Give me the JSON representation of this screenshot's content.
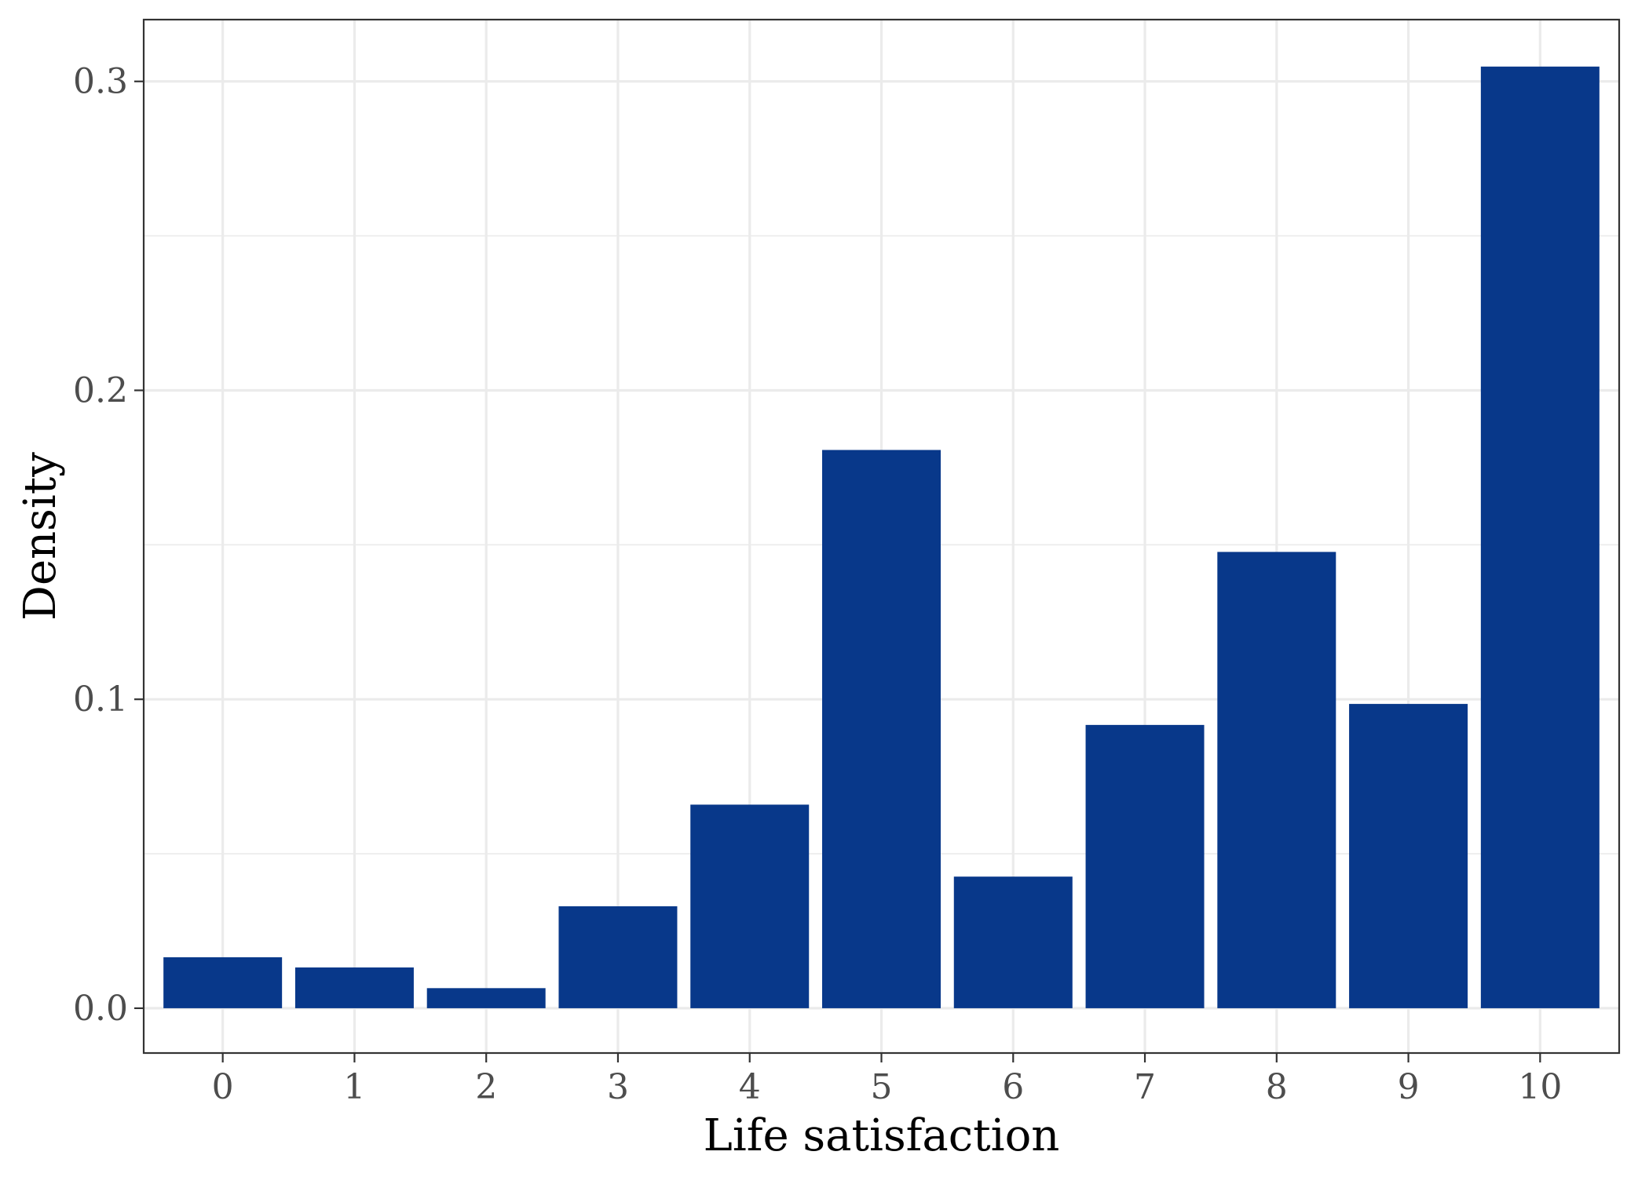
{
  "chart_data": {
    "type": "bar",
    "categories": [
      "0",
      "1",
      "2",
      "3",
      "4",
      "5",
      "6",
      "7",
      "8",
      "9",
      "10"
    ],
    "values": [
      0.0165,
      0.0132,
      0.0065,
      0.033,
      0.0659,
      0.1807,
      0.0426,
      0.0917,
      0.1477,
      0.0985,
      0.3048
    ],
    "xlabel": "Life satisfaction",
    "ylabel": "Density",
    "ylim": [
      -0.0145,
      0.32
    ],
    "yticks": [
      0.0,
      0.1,
      0.2,
      0.3
    ],
    "ytick_labels": [
      "0.0",
      "0.1",
      "0.2",
      "0.3"
    ],
    "grid": true,
    "bar_color": "#08388a",
    "grid_color": "#ebebeb",
    "axis_color": "#333333"
  }
}
